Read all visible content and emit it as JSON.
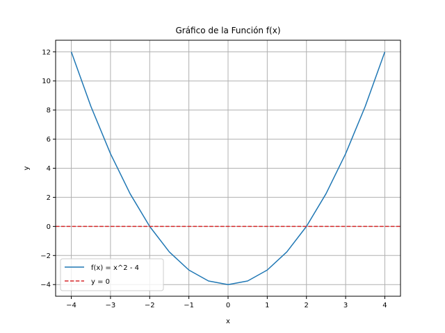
{
  "chart_data": {
    "type": "line",
    "title": "Gráfico de la Función f(x)",
    "xlabel": "x",
    "ylabel": "y",
    "xlim": [
      -4.4,
      4.4
    ],
    "ylim": [
      -4.8,
      12.8
    ],
    "xticks": [
      -4,
      -3,
      -2,
      -1,
      0,
      1,
      2,
      3,
      4
    ],
    "xtick_labels": [
      "−4",
      "−3",
      "−2",
      "−1",
      "0",
      "1",
      "2",
      "3",
      "4"
    ],
    "yticks": [
      -4,
      -2,
      0,
      2,
      4,
      6,
      8,
      10,
      12
    ],
    "ytick_labels": [
      "−4",
      "−2",
      "0",
      "2",
      "4",
      "6",
      "8",
      "10",
      "12"
    ],
    "grid": true,
    "legend_position": "lower-left",
    "series": [
      {
        "name": "f(x) = x^2 - 4",
        "style": "solid",
        "color": "#1f77b4",
        "x": [
          -4,
          -3.5,
          -3,
          -2.5,
          -2,
          -1.5,
          -1,
          -0.5,
          0,
          0.5,
          1,
          1.5,
          2,
          2.5,
          3,
          3.5,
          4
        ],
        "y": [
          12,
          8.25,
          5,
          2.25,
          0,
          -1.75,
          -3,
          -3.75,
          -4,
          -3.75,
          -3,
          -1.75,
          0,
          2.25,
          5,
          8.25,
          12
        ]
      },
      {
        "name": "y = 0",
        "style": "dashed",
        "color": "#d62728",
        "x": [
          -4.4,
          4.4
        ],
        "y": [
          0,
          0
        ]
      }
    ]
  }
}
